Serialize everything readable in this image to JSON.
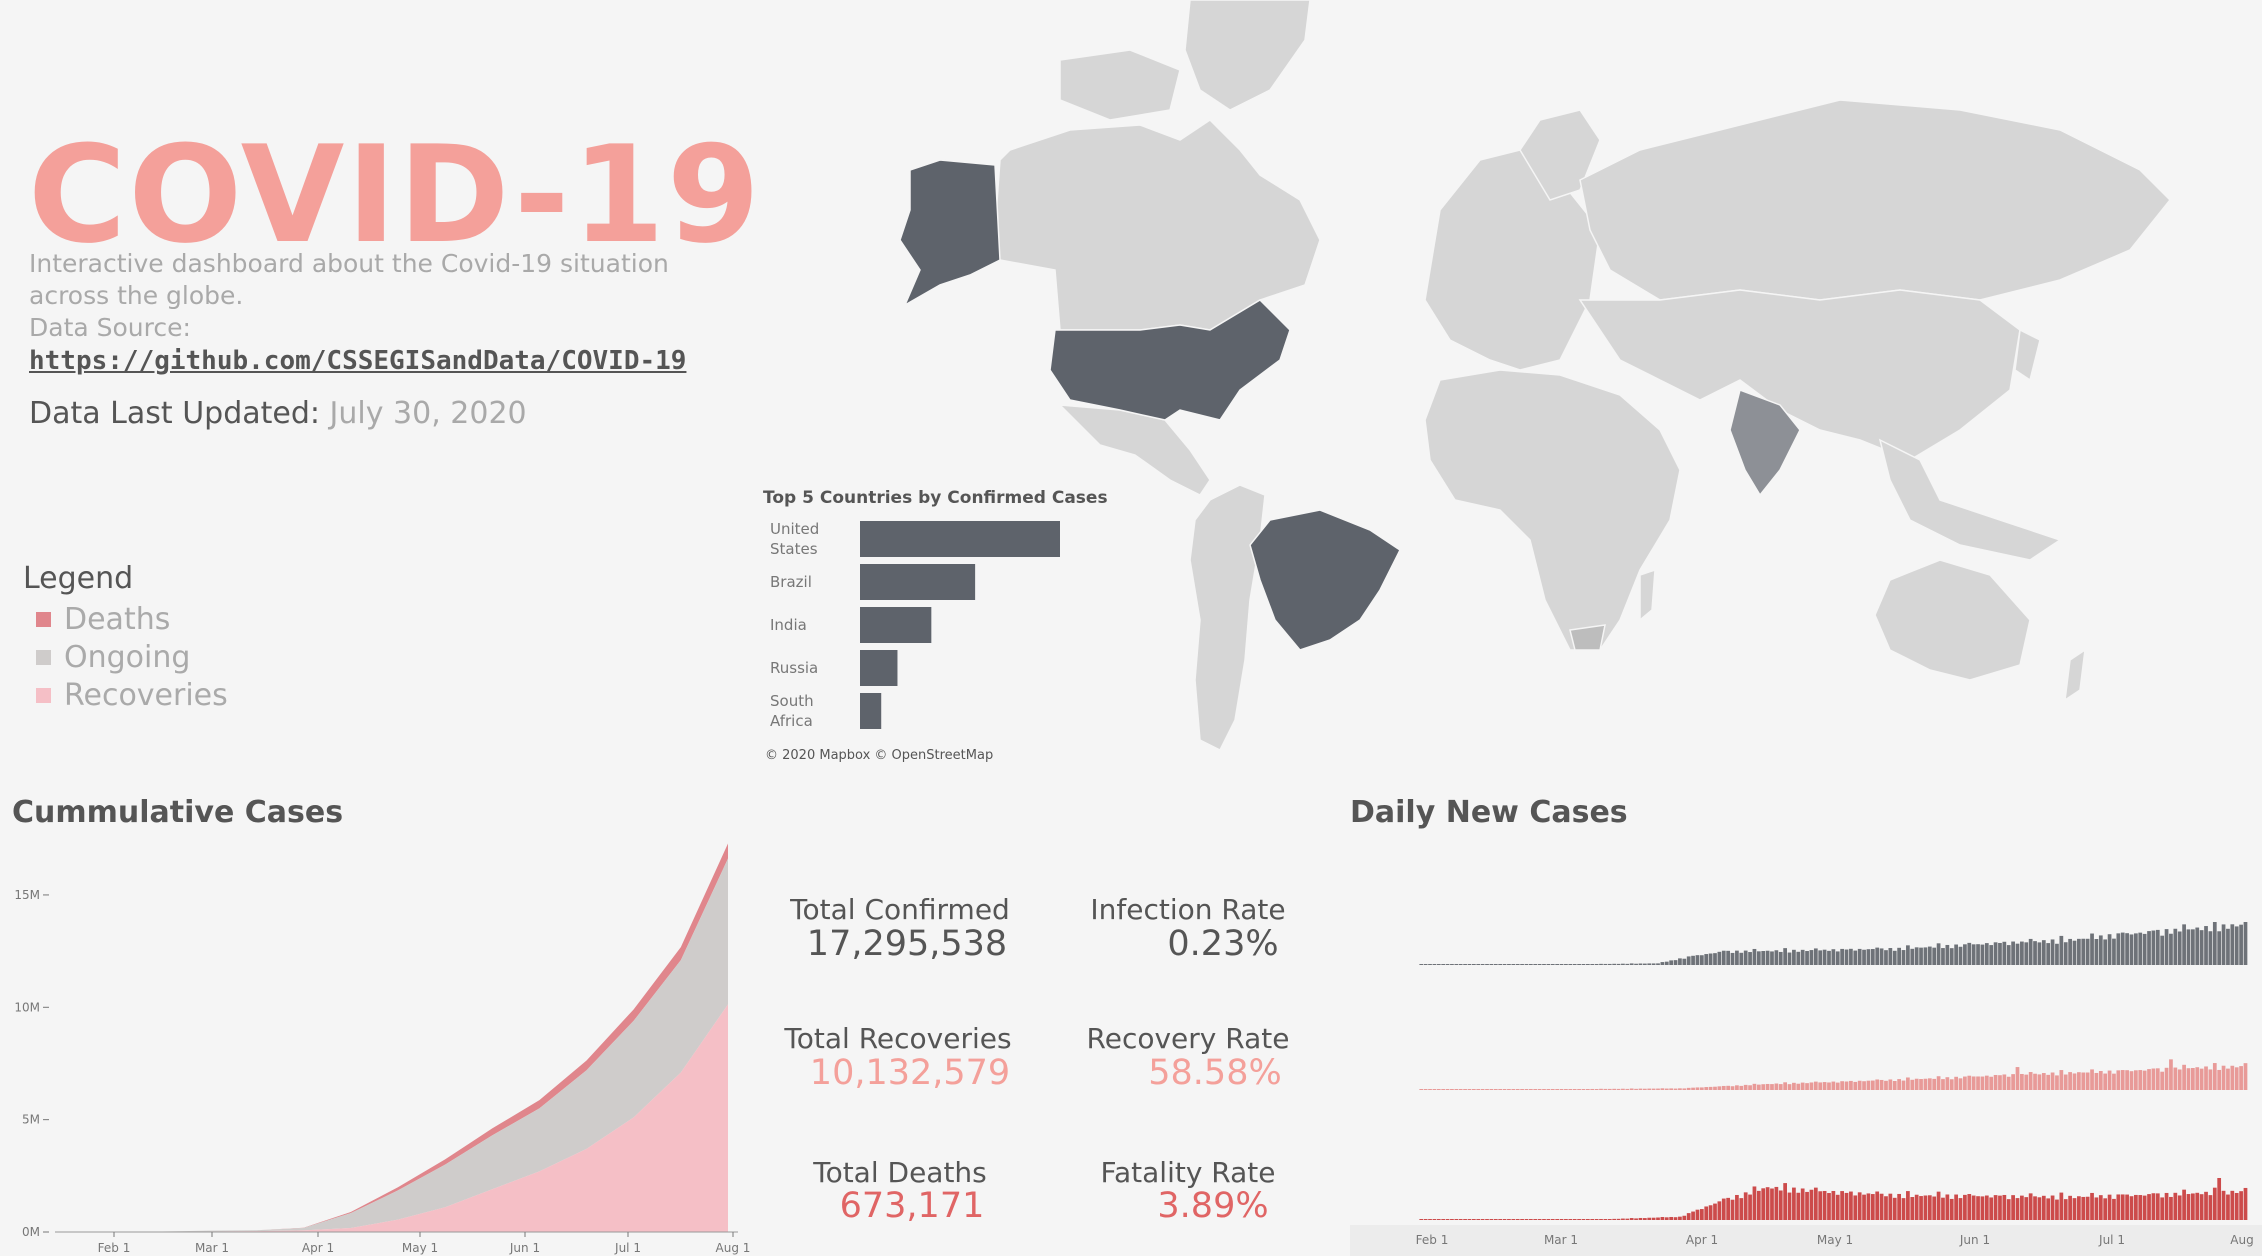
{
  "header": {
    "title": "COVID-19",
    "intro_line1": "Interactive dashboard about the Covid-19 situation",
    "intro_line2": "across the globe.",
    "source_label": "Data Source:",
    "source_url": "https://github.com/CSSEGISandData/COVID-19",
    "updated_label": "Data Last Updated:",
    "updated_value": "July 30, 2020"
  },
  "legend": {
    "title": "Legend",
    "items": [
      {
        "label": "Deaths",
        "color": "#e0868c"
      },
      {
        "label": "Ongoing",
        "color": "#cfcccb"
      },
      {
        "label": "Recoveries",
        "color": "#f5bfc6"
      }
    ]
  },
  "map": {
    "attribution": "© 2020 Mapbox  © OpenStreetMap",
    "highlight_color": "#5e636b",
    "land_color": "#d4d4d4"
  },
  "top5": {
    "title": "Top 5 Countries by Confirmed Cases",
    "chart_data": {
      "type": "bar",
      "categories": [
        "United States",
        "Brazil",
        "India",
        "Russia",
        "South Africa"
      ],
      "values": [
        4430000,
        2550000,
        1580000,
        830000,
        470000
      ]
    }
  },
  "cumulative": {
    "title": "Cummulative Cases",
    "chart_data": {
      "type": "area",
      "x": [
        "Jan 22",
        "Feb 1",
        "Feb 15",
        "Mar 1",
        "Mar 15",
        "Apr 1",
        "Apr 15",
        "May 1",
        "May 15",
        "Jun 1",
        "Jun 15",
        "Jul 1",
        "Jul 15",
        "Jul 30"
      ],
      "series": [
        {
          "name": "Recoveries",
          "values": [
            0,
            0.01,
            0.02,
            0.04,
            0.07,
            0.18,
            0.55,
            1.1,
            1.9,
            2.7,
            3.7,
            5.1,
            7.1,
            10.13
          ]
        },
        {
          "name": "Ongoing",
          "values": [
            0,
            0.01,
            0.04,
            0.04,
            0.11,
            0.66,
            1.3,
            1.9,
            2.4,
            2.8,
            3.5,
            4.3,
            5.0,
            6.49
          ]
        },
        {
          "name": "Deaths",
          "values": [
            0,
            0,
            0,
            0,
            0.01,
            0.05,
            0.14,
            0.23,
            0.31,
            0.37,
            0.43,
            0.51,
            0.58,
            0.67
          ]
        }
      ],
      "ylim": [
        0,
        17
      ],
      "y_ticks": [
        "0M",
        "5M",
        "10M",
        "15M"
      ],
      "x_ticks": [
        "Feb 1",
        "Mar 1",
        "Apr 1",
        "May 1",
        "Jun 1",
        "Jul 1",
        "Aug 1"
      ]
    }
  },
  "kpis": {
    "total_confirmed_label": "Total Confirmed",
    "total_confirmed": "17,295,538",
    "infection_rate_label": "Infection Rate",
    "infection_rate": "0.23%",
    "total_recoveries_label": "Total Recoveries",
    "total_recoveries": "10,132,579",
    "recovery_rate_label": "Recovery Rate",
    "recovery_rate": "58.58%",
    "total_deaths_label": "Total Deaths",
    "total_deaths": "673,171",
    "fatality_rate_label": "Fatality Rate",
    "fatality_rate": "3.89%"
  },
  "daily": {
    "title": "Daily New Cases",
    "colors": {
      "confirmed": "#6e7278",
      "recoveries": "#e89a98",
      "deaths": "#cc4b4b"
    },
    "x_ticks": [
      "Feb 1",
      "Mar 1",
      "Apr 1",
      "May 1",
      "Jun 1",
      "Jul 1",
      "Aug"
    ],
    "chart_data": {
      "type": "bar",
      "x_range": [
        "Jan 22",
        "Jul 30"
      ],
      "series": [
        {
          "name": "confirmed",
          "anchors": [
            [
              0,
              0
            ],
            [
              30,
              0.01
            ],
            [
              55,
              0.04
            ],
            [
              62,
              0.2
            ],
            [
              70,
              0.33
            ],
            [
              90,
              0.36
            ],
            [
              110,
              0.4
            ],
            [
              130,
              0.52
            ],
            [
              150,
              0.62
            ],
            [
              160,
              0.74
            ],
            [
              175,
              0.87
            ],
            [
              190,
              1.0
            ]
          ]
        },
        {
          "name": "recoveries",
          "anchors": [
            [
              0,
              0
            ],
            [
              20,
              0.01
            ],
            [
              60,
              0.04
            ],
            [
              80,
              0.15
            ],
            [
              100,
              0.22
            ],
            [
              120,
              0.3
            ],
            [
              140,
              0.4
            ],
            [
              160,
              0.47
            ],
            [
              175,
              0.55
            ],
            [
              190,
              0.6
            ]
          ]
        },
        {
          "name": "deaths",
          "anchors": [
            [
              0,
              0
            ],
            [
              40,
              0.01
            ],
            [
              60,
              0.08
            ],
            [
              70,
              0.5
            ],
            [
              80,
              0.82
            ],
            [
              95,
              0.7
            ],
            [
              110,
              0.62
            ],
            [
              130,
              0.6
            ],
            [
              150,
              0.58
            ],
            [
              170,
              0.64
            ],
            [
              190,
              0.72
            ]
          ]
        }
      ]
    }
  }
}
